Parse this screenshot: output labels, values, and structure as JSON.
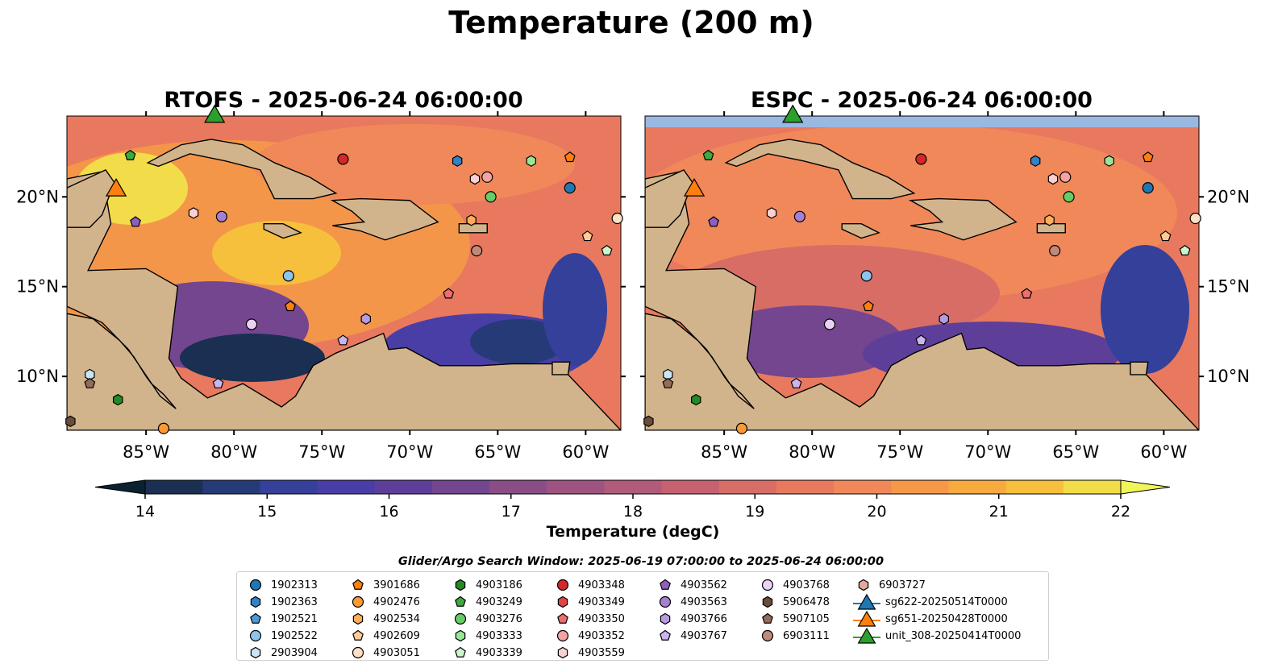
{
  "suptitle": "Temperature (200 m)",
  "panels": [
    {
      "title": "RTOFS - 2025-06-24 06:00:00",
      "model": "RTOFS"
    },
    {
      "title": "ESPC - 2025-06-24 06:00:00",
      "model": "ESPC"
    }
  ],
  "map": {
    "lon_range": [
      -89.5,
      -58
    ],
    "lat_range": [
      7,
      24.5
    ],
    "lon_ticks": [
      -85,
      -80,
      -75,
      -70,
      -65,
      -60
    ],
    "lon_tick_labels": [
      "85°W",
      "80°W",
      "75°W",
      "70°W",
      "65°W",
      "60°W"
    ],
    "lat_ticks": [
      10,
      15,
      20
    ],
    "lat_tick_labels": [
      "10°N",
      "15°N",
      "20°N"
    ],
    "land_color": "#d2b48c",
    "shelf_color": "#9ab8e0"
  },
  "colorbar": {
    "label": "Temperature (degC)",
    "min": 14,
    "max": 22,
    "step": 0.5,
    "ticks": [
      14,
      15,
      16,
      17,
      18,
      19,
      20,
      21,
      22
    ],
    "colors": [
      "#1a2f52",
      "#263a78",
      "#34409a",
      "#483ea6",
      "#5d3f9a",
      "#73468f",
      "#8a4d87",
      "#9e5380",
      "#b25a79",
      "#c6626f",
      "#d86d66",
      "#e8795e",
      "#f1885a",
      "#f59948",
      "#f7aa3e",
      "#f6bf3c",
      "#f2dc4a"
    ],
    "extend_low_color": "#0a2230",
    "extend_high_color": "#f0f55a"
  },
  "search_window": "Glider/Argo Search Window: 2025-06-19 07:00:00 to 2025-06-24 06:00:00",
  "legend": [
    [
      {
        "label": "1902313",
        "marker": "circle",
        "color": "#1f77b4"
      },
      {
        "label": "1902363",
        "marker": "hexagon",
        "color": "#2f83c8"
      },
      {
        "label": "1902521",
        "marker": "pentagon",
        "color": "#4b9ad6"
      },
      {
        "label": "1902522",
        "marker": "circle",
        "color": "#8cc4ee"
      },
      {
        "label": "2903904",
        "marker": "hexagon",
        "color": "#c9e5f7"
      }
    ],
    [
      {
        "label": "3901686",
        "marker": "pentagon",
        "color": "#ff7f0e"
      },
      {
        "label": "4902476",
        "marker": "circle",
        "color": "#ff9933"
      },
      {
        "label": "4902534",
        "marker": "hexagon",
        "color": "#ffad5c"
      },
      {
        "label": "4902609",
        "marker": "pentagon",
        "color": "#ffcc99"
      },
      {
        "label": "4903051",
        "marker": "circle",
        "color": "#ffe0c2"
      }
    ],
    [
      {
        "label": "4903186",
        "marker": "hexagon",
        "color": "#228b22"
      },
      {
        "label": "4903249",
        "marker": "pentagon",
        "color": "#3caa3c"
      },
      {
        "label": "4903276",
        "marker": "circle",
        "color": "#66cc66"
      },
      {
        "label": "4903333",
        "marker": "hexagon",
        "color": "#99e699"
      },
      {
        "label": "4903339",
        "marker": "pentagon",
        "color": "#ccf5cc"
      }
    ],
    [
      {
        "label": "4903348",
        "marker": "circle",
        "color": "#d62728"
      },
      {
        "label": "4903349",
        "marker": "hexagon",
        "color": "#e04444"
      },
      {
        "label": "4903350",
        "marker": "pentagon",
        "color": "#eb6f6f"
      },
      {
        "label": "4903352",
        "marker": "circle",
        "color": "#f4a3a3"
      },
      {
        "label": "4903559",
        "marker": "hexagon",
        "color": "#fbd0d0"
      }
    ],
    [
      {
        "label": "4903562",
        "marker": "pentagon",
        "color": "#8e5fc2"
      },
      {
        "label": "4903563",
        "marker": "circle",
        "color": "#a57fd1"
      },
      {
        "label": "4903766",
        "marker": "hexagon",
        "color": "#b79ae0"
      },
      {
        "label": "4903767",
        "marker": "pentagon",
        "color": "#cbb5ef"
      }
    ],
    [
      {
        "label": "4903768",
        "marker": "circle",
        "color": "#ead2f7"
      },
      {
        "label": "5906478",
        "marker": "hexagon",
        "color": "#6b4c3b"
      },
      {
        "label": "5907105",
        "marker": "pentagon",
        "color": "#946a58"
      },
      {
        "label": "6903111",
        "marker": "circle",
        "color": "#c08a7a"
      }
    ],
    [
      {
        "label": "6903727",
        "marker": "hexagon",
        "color": "#e7a99a"
      },
      {
        "label": "sg622-20250514T0000",
        "marker": "triangle",
        "color": "#1f77b4"
      },
      {
        "label": "sg651-20250428T0000",
        "marker": "triangle",
        "color": "#ff7f0e"
      },
      {
        "label": "unit_308-20250414T0000",
        "marker": "triangle",
        "color": "#2ca02c"
      }
    ]
  ],
  "floats": [
    {
      "id": "1902313",
      "lon": -60.9,
      "lat": 20.5
    },
    {
      "id": "1902363",
      "lon": -67.3,
      "lat": 22.0
    },
    {
      "id": "1902522",
      "lon": -76.9,
      "lat": 15.6
    },
    {
      "id": "2903904",
      "lon": -88.2,
      "lat": 10.1
    },
    {
      "id": "3901686",
      "lon": -60.9,
      "lat": 22.2
    },
    {
      "id": "3901686",
      "lon": -76.8,
      "lat": 13.9
    },
    {
      "id": "4902476",
      "lon": -84.0,
      "lat": 7.1
    },
    {
      "id": "4902534",
      "lon": -66.5,
      "lat": 18.7
    },
    {
      "id": "4902609",
      "lon": -59.9,
      "lat": 17.8
    },
    {
      "id": "4903051",
      "lon": -58.2,
      "lat": 18.8
    },
    {
      "id": "4903186",
      "lon": -86.6,
      "lat": 8.7
    },
    {
      "id": "4903249",
      "lon": -85.9,
      "lat": 22.3
    },
    {
      "id": "4903276",
      "lon": -65.4,
      "lat": 20.0
    },
    {
      "id": "4903333",
      "lon": -63.1,
      "lat": 22.0
    },
    {
      "id": "4903339",
      "lon": -58.8,
      "lat": 17.0
    },
    {
      "id": "4903348",
      "lon": -73.8,
      "lat": 22.1
    },
    {
      "id": "4903350",
      "lon": -67.8,
      "lat": 14.6
    },
    {
      "id": "4903352",
      "lon": -65.6,
      "lat": 21.1
    },
    {
      "id": "4903559",
      "lon": -66.3,
      "lat": 21.0
    },
    {
      "id": "4903562",
      "lon": -85.6,
      "lat": 18.6
    },
    {
      "id": "4903563",
      "lon": -80.7,
      "lat": 18.9
    },
    {
      "id": "4903766",
      "lon": -72.5,
      "lat": 13.2
    },
    {
      "id": "4903767",
      "lon": -73.8,
      "lat": 12.0
    },
    {
      "id": "4903767",
      "lon": -80.9,
      "lat": 9.6
    },
    {
      "id": "4903768",
      "lon": -79.0,
      "lat": 12.9
    },
    {
      "id": "4903559",
      "lon": -82.3,
      "lat": 19.1
    },
    {
      "id": "5906478",
      "lon": -89.3,
      "lat": 7.5
    },
    {
      "id": "5907105",
      "lon": -88.2,
      "lat": 9.6
    },
    {
      "id": "6903111",
      "lon": -66.2,
      "lat": 17.0
    }
  ],
  "gliders": [
    {
      "id": "sg651-20250428T0000",
      "lon": -86.7,
      "lat": 20.5
    },
    {
      "id": "unit_308-20250414T0000",
      "lon": -81.1,
      "lat": 24.6
    }
  ]
}
